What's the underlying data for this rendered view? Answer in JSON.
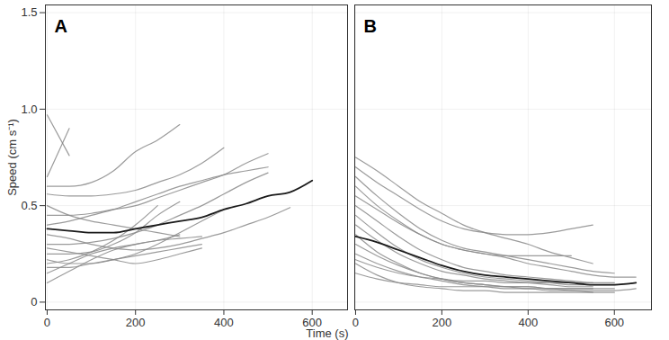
{
  "chart_data": [
    {
      "type": "line",
      "title": "A",
      "xlabel": "Time (s)",
      "ylabel": "Speed (cm s⁻¹)",
      "x": [
        0,
        50,
        100,
        150,
        200,
        250,
        300,
        350,
        400,
        450,
        500,
        550,
        600,
        650
      ],
      "xlim": [
        -4,
        680
      ],
      "xticks": [
        0,
        200,
        400,
        600
      ],
      "ylim": [
        -0.04,
        1.54
      ],
      "yticks": [
        0,
        0.5,
        {
          "value": 1,
          "label": "1.0"
        },
        1.5
      ],
      "grid": true,
      "series": [
        {
          "color": "#8a8a8a",
          "values": [
            0.97,
            0.76,
            null,
            null,
            null,
            null,
            null,
            null,
            null,
            null,
            null,
            null,
            null,
            null
          ]
        },
        {
          "color": "#8a8a8a",
          "values": [
            0.65,
            0.9,
            null,
            null,
            null,
            null,
            null,
            null,
            null,
            null,
            null,
            null,
            null,
            null
          ]
        },
        {
          "color": "#8a8a8a",
          "values": [
            0.6,
            0.6,
            0.62,
            0.68,
            0.78,
            0.84,
            0.92,
            null,
            null,
            null,
            null,
            null,
            null,
            null
          ]
        },
        {
          "color": "#8a8a8a",
          "values": [
            0.56,
            0.55,
            0.55,
            0.56,
            0.58,
            0.62,
            0.66,
            0.72,
            0.8,
            null,
            null,
            null,
            null,
            null
          ]
        },
        {
          "color": "#8a8a8a",
          "values": [
            0.45,
            0.45,
            0.46,
            0.48,
            0.5,
            0.54,
            0.58,
            0.62,
            0.66,
            0.72,
            0.77,
            null,
            null,
            null
          ]
        },
        {
          "color": "#8a8a8a",
          "values": [
            0.4,
            0.42,
            0.45,
            0.48,
            0.52,
            0.56,
            0.6,
            0.63,
            0.66,
            0.68,
            0.7,
            null,
            null,
            null
          ]
        },
        {
          "color": "#8a8a8a",
          "values": [
            0.3,
            0.3,
            0.31,
            0.33,
            0.36,
            0.4,
            0.45,
            0.5,
            0.56,
            0.62,
            0.67,
            null,
            null,
            null
          ]
        },
        {
          "color": "#8a8a8a",
          "values": [
            0.35,
            0.33,
            0.3,
            0.28,
            0.27,
            0.28,
            0.3,
            0.33,
            0.36,
            0.4,
            0.44,
            0.49,
            null,
            null
          ]
        },
        {
          "color": "#8a8a8a",
          "values": [
            0.25,
            0.25,
            0.26,
            0.3,
            0.36,
            0.45,
            0.52,
            null,
            null,
            null,
            null,
            null,
            null,
            null
          ]
        },
        {
          "color": "#8a8a8a",
          "values": [
            0.2,
            0.22,
            0.26,
            0.32,
            0.4,
            0.5,
            null,
            null,
            null,
            null,
            null,
            null,
            null,
            null
          ]
        },
        {
          "color": "#8a8a8a",
          "values": [
            0.15,
            0.2,
            0.25,
            0.28,
            0.3,
            0.32,
            0.35,
            null,
            null,
            null,
            null,
            null,
            null,
            null
          ]
        },
        {
          "color": "#8a8a8a",
          "values": [
            0.1,
            0.16,
            0.22,
            0.27,
            0.3,
            0.32,
            0.33,
            0.34,
            null,
            null,
            null,
            null,
            null,
            null
          ]
        },
        {
          "color": "#8a8a8a",
          "values": [
            0.28,
            0.26,
            0.24,
            0.22,
            0.2,
            0.22,
            0.25,
            0.28,
            null,
            null,
            null,
            null,
            null,
            null
          ]
        },
        {
          "color": "#8a8a8a",
          "values": [
            0.22,
            0.2,
            0.2,
            0.22,
            0.25,
            0.3,
            0.36,
            0.42,
            0.48,
            null,
            null,
            null,
            null,
            null
          ]
        },
        {
          "color": "#8a8a8a",
          "values": [
            0.5,
            0.45,
            0.42,
            0.4,
            0.38,
            0.36,
            0.34,
            null,
            null,
            null,
            null,
            null,
            null,
            null
          ]
        },
        {
          "color": "#8a8a8a",
          "values": [
            0.18,
            0.18,
            0.2,
            0.22,
            0.24,
            0.26,
            0.28,
            0.3,
            null,
            null,
            null,
            null,
            null,
            null
          ]
        },
        {
          "color": "#1a1a1a",
          "values": [
            0.38,
            0.37,
            0.36,
            0.36,
            0.38,
            0.4,
            0.42,
            0.44,
            0.48,
            0.51,
            0.55,
            0.57,
            0.63,
            null
          ]
        }
      ]
    },
    {
      "type": "line",
      "title": "B",
      "tick_labels": "x",
      "x": [
        0,
        50,
        100,
        150,
        200,
        250,
        300,
        350,
        400,
        450,
        500,
        550,
        600,
        650
      ],
      "xlim": [
        -2,
        686
      ],
      "xticks": [
        0,
        200,
        400,
        600
      ],
      "ylim": [
        -0.04,
        1.54
      ],
      "yticks": [
        0,
        0.5,
        {
          "value": 1,
          "label": "1.0"
        },
        1.5
      ],
      "grid": true,
      "series": [
        {
          "color": "#8a8a8a",
          "values": [
            0.75,
            0.68,
            0.6,
            0.52,
            0.46,
            0.4,
            0.36,
            0.33,
            0.3,
            0.26,
            0.23,
            0.2,
            null,
            null
          ]
        },
        {
          "color": "#8a8a8a",
          "values": [
            0.7,
            0.62,
            0.55,
            0.48,
            0.42,
            0.38,
            0.36,
            0.35,
            0.35,
            0.36,
            0.38,
            0.4,
            null,
            null
          ]
        },
        {
          "color": "#8a8a8a",
          "values": [
            0.65,
            0.55,
            0.46,
            0.38,
            0.32,
            0.28,
            0.26,
            0.24,
            0.22,
            0.2,
            0.18,
            0.16,
            0.15,
            null
          ]
        },
        {
          "color": "#8a8a8a",
          "values": [
            0.55,
            0.48,
            0.41,
            0.35,
            0.3,
            0.27,
            0.25,
            0.23,
            0.2,
            0.18,
            0.16,
            0.14,
            0.13,
            0.13
          ]
        },
        {
          "color": "#8a8a8a",
          "values": [
            0.5,
            0.42,
            0.34,
            0.27,
            0.22,
            0.18,
            0.16,
            0.14,
            0.13,
            0.12,
            0.11,
            0.1,
            0.1,
            null
          ]
        },
        {
          "color": "#8a8a8a",
          "values": [
            0.45,
            0.36,
            0.28,
            0.22,
            0.18,
            0.15,
            0.13,
            0.12,
            0.11,
            0.1,
            0.09,
            0.09,
            0.09,
            0.1
          ]
        },
        {
          "color": "#8a8a8a",
          "values": [
            0.4,
            0.32,
            0.25,
            0.2,
            0.16,
            0.14,
            0.12,
            0.11,
            0.1,
            0.09,
            0.08,
            0.08,
            null,
            null
          ]
        },
        {
          "color": "#8a8a8a",
          "values": [
            0.35,
            0.26,
            0.2,
            0.15,
            0.12,
            0.1,
            0.09,
            0.08,
            0.08,
            0.07,
            0.07,
            0.07,
            0.07,
            null
          ]
        },
        {
          "color": "#8a8a8a",
          "values": [
            0.3,
            0.24,
            0.19,
            0.15,
            0.12,
            0.1,
            0.09,
            0.08,
            0.07,
            0.07,
            0.06,
            0.06,
            0.06,
            0.07
          ]
        },
        {
          "color": "#8a8a8a",
          "values": [
            0.25,
            0.2,
            0.16,
            0.13,
            0.11,
            0.09,
            0.08,
            0.07,
            0.07,
            0.06,
            0.06,
            0.05,
            null,
            null
          ]
        },
        {
          "color": "#8a8a8a",
          "values": [
            0.22,
            0.18,
            0.15,
            0.13,
            0.12,
            0.11,
            0.11,
            0.1,
            0.1,
            0.1,
            0.1,
            0.1,
            null,
            null
          ]
        },
        {
          "color": "#8a8a8a",
          "values": [
            0.2,
            0.14,
            0.1,
            0.08,
            0.07,
            0.06,
            0.06,
            0.05,
            0.05,
            0.05,
            0.05,
            0.05,
            0.05,
            null
          ]
        },
        {
          "color": "#8a8a8a",
          "values": [
            0.6,
            0.5,
            0.42,
            0.35,
            0.3,
            0.27,
            0.25,
            0.24,
            0.24,
            0.24,
            0.24,
            null,
            null,
            null
          ]
        },
        {
          "color": "#8a8a8a",
          "values": [
            0.15,
            0.12,
            0.1,
            0.09,
            0.08,
            0.08,
            0.08,
            0.08,
            0.08,
            0.07,
            0.07,
            0.07,
            null,
            null
          ]
        },
        {
          "color": "#1a1a1a",
          "values": [
            0.34,
            0.31,
            0.27,
            0.23,
            0.19,
            0.16,
            0.14,
            0.13,
            0.12,
            0.11,
            0.1,
            0.09,
            0.09,
            0.1
          ]
        }
      ]
    }
  ]
}
